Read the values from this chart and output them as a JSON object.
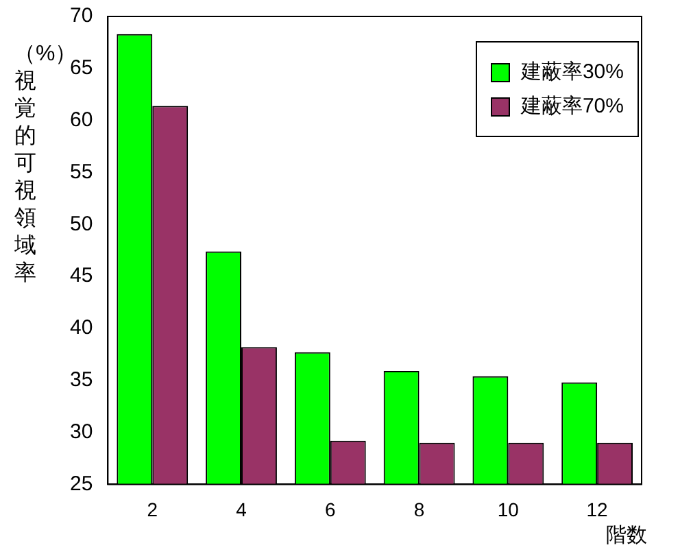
{
  "chart_data": {
    "type": "bar",
    "xlabel": "階数",
    "ylabel": "（%）視覚的可視領域率",
    "categories": [
      "2",
      "4",
      "6",
      "8",
      "10",
      "12"
    ],
    "series": [
      {
        "name": "建蔽率30%",
        "color": "#00ff00",
        "values": [
          68.3,
          47.4,
          37.7,
          35.9,
          35.4,
          34.8
        ]
      },
      {
        "name": "建蔽率70%",
        "color": "#993366",
        "values": [
          61.4,
          38.2,
          29.2,
          29.0,
          29.0,
          29.0
        ]
      }
    ],
    "ylim": [
      25,
      70
    ],
    "yticks": [
      25,
      30,
      35,
      40,
      45,
      50,
      55,
      60,
      65,
      70
    ],
    "grid": false,
    "legend": "top right"
  }
}
